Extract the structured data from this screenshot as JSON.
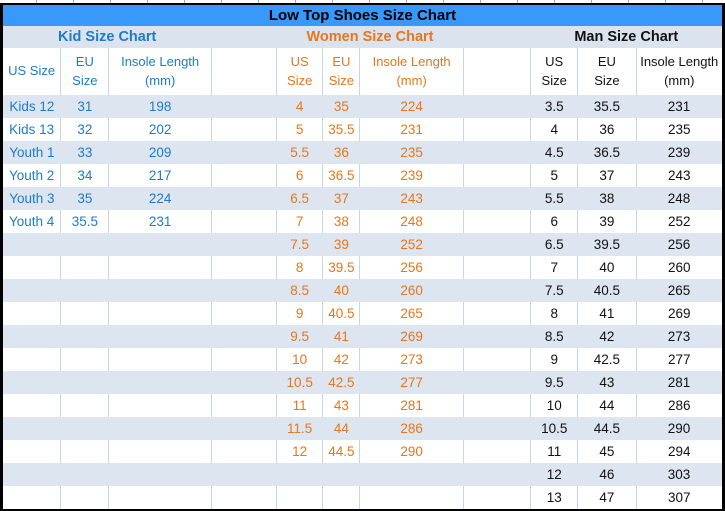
{
  "title": "Low Top Shoes Size Chart",
  "colors": {
    "title_bar": "#3899fb",
    "kid": "#1c7cc8",
    "women": "#e5771e",
    "man": "#111111",
    "stripe": "#dce5f0",
    "band": "#dae3ee",
    "grid": "#c9d5e3"
  },
  "sections": [
    {
      "id": "kid",
      "label": "Kid Size Chart",
      "columns": [
        "US Size",
        "EU\nSize",
        "Insole Length\n(mm)"
      ],
      "rows": [
        [
          "Kids 12",
          "31",
          "198"
        ],
        [
          "Kids 13",
          "32",
          "202"
        ],
        [
          "Youth 1",
          "33",
          "209"
        ],
        [
          "Youth 2",
          "34",
          "217"
        ],
        [
          "Youth 3",
          "35",
          "224"
        ],
        [
          "Youth 4",
          "35.5",
          "231"
        ]
      ]
    },
    {
      "id": "women",
      "label": "Women Size Chart",
      "columns": [
        "US\nSize",
        "EU\nSize",
        "Insole Length\n(mm)"
      ],
      "rows": [
        [
          "4",
          "35",
          "224"
        ],
        [
          "5",
          "35.5",
          "231"
        ],
        [
          "5.5",
          "36",
          "235"
        ],
        [
          "6",
          "36.5",
          "239"
        ],
        [
          "6.5",
          "37",
          "243"
        ],
        [
          "7",
          "38",
          "248"
        ],
        [
          "7.5",
          "39",
          "252"
        ],
        [
          "8",
          "39.5",
          "256"
        ],
        [
          "8.5",
          "40",
          "260"
        ],
        [
          "9",
          "40.5",
          "265"
        ],
        [
          "9.5",
          "41",
          "269"
        ],
        [
          "10",
          "42",
          "273"
        ],
        [
          "10.5",
          "42.5",
          "277"
        ],
        [
          "11",
          "43",
          "281"
        ],
        [
          "11.5",
          "44",
          "286"
        ],
        [
          "12",
          "44.5",
          "290"
        ]
      ]
    },
    {
      "id": "man",
      "label": "Man Size Chart",
      "columns": [
        "US\nSize",
        "EU\nSize",
        "Insole Length\n(mm)"
      ],
      "rows": [
        [
          "3.5",
          "35.5",
          "231"
        ],
        [
          "4",
          "36",
          "235"
        ],
        [
          "4.5",
          "36.5",
          "239"
        ],
        [
          "5",
          "37",
          "243"
        ],
        [
          "5.5",
          "38",
          "248"
        ],
        [
          "6",
          "39",
          "252"
        ],
        [
          "6.5",
          "39.5",
          "256"
        ],
        [
          "7",
          "40",
          "260"
        ],
        [
          "7.5",
          "40.5",
          "265"
        ],
        [
          "8",
          "41",
          "269"
        ],
        [
          "8.5",
          "42",
          "273"
        ],
        [
          "9",
          "42.5",
          "277"
        ],
        [
          "9.5",
          "43",
          "281"
        ],
        [
          "10",
          "44",
          "286"
        ],
        [
          "10.5",
          "44.5",
          "290"
        ],
        [
          "11",
          "45",
          "294"
        ],
        [
          "12",
          "46",
          "303"
        ],
        [
          "13",
          "47",
          "307"
        ]
      ]
    }
  ]
}
